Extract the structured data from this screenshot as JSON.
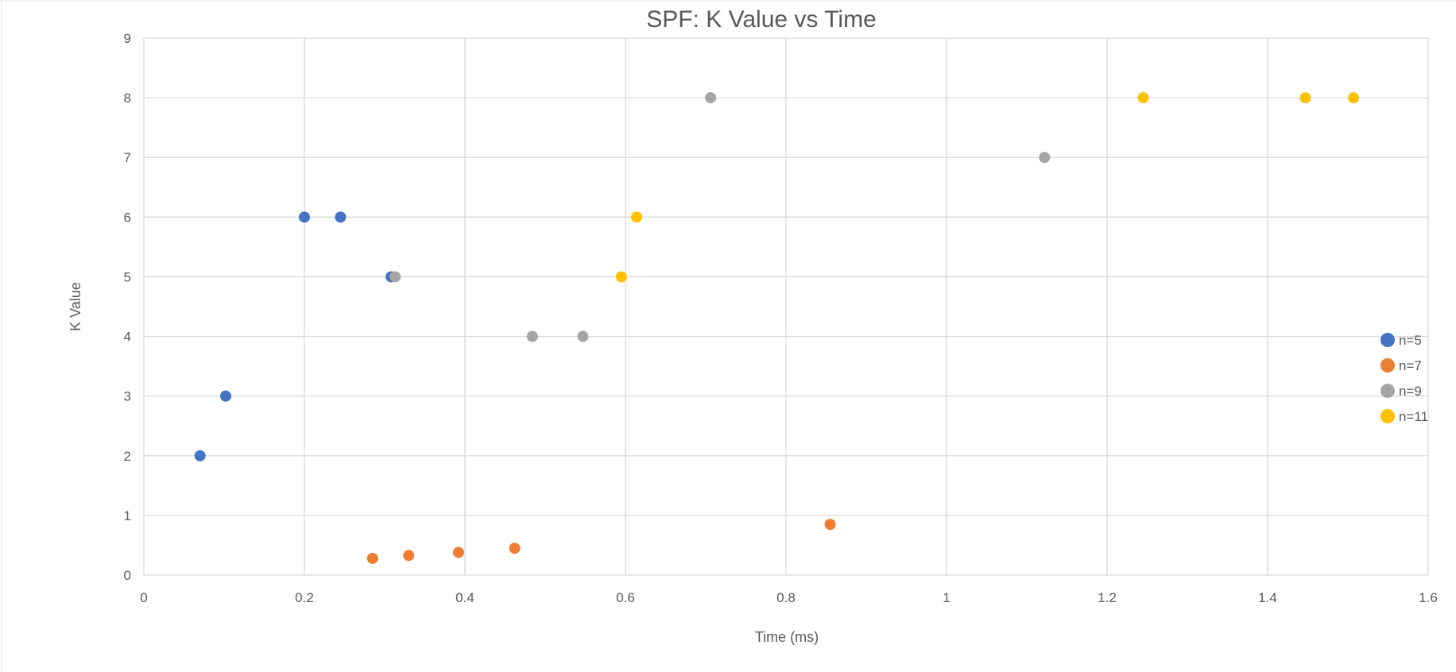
{
  "chart_data": {
    "type": "scatter",
    "title": "SPF: K Value vs Time",
    "xlabel": "Time (ms)",
    "ylabel": "K Value",
    "xlim": [
      0,
      1.6
    ],
    "ylim": [
      0,
      9
    ],
    "x_ticks": [
      "0",
      "0.2",
      "0.4",
      "0.6",
      "0.8",
      "1",
      "1.2",
      "1.4",
      "1.6"
    ],
    "y_ticks": [
      "0",
      "1",
      "2",
      "3",
      "4",
      "5",
      "6",
      "7",
      "8",
      "9"
    ],
    "grid": true,
    "legend_position": "right",
    "series": [
      {
        "name": "n=5",
        "color": "#4472C4",
        "points": [
          {
            "x": 0.07,
            "y": 2
          },
          {
            "x": 0.102,
            "y": 3
          },
          {
            "x": 0.2,
            "y": 6
          },
          {
            "x": 0.245,
            "y": 6
          },
          {
            "x": 0.308,
            "y": 5
          }
        ]
      },
      {
        "name": "n=7",
        "color": "#ED7D31",
        "points": [
          {
            "x": 0.285,
            "y": 0.28
          },
          {
            "x": 0.33,
            "y": 0.33
          },
          {
            "x": 0.392,
            "y": 0.38
          },
          {
            "x": 0.462,
            "y": 0.45
          },
          {
            "x": 0.855,
            "y": 0.85
          }
        ]
      },
      {
        "name": "n=9",
        "color": "#A5A5A5",
        "points": [
          {
            "x": 0.313,
            "y": 5
          },
          {
            "x": 0.484,
            "y": 4
          },
          {
            "x": 0.547,
            "y": 4
          },
          {
            "x": 0.706,
            "y": 8
          },
          {
            "x": 1.122,
            "y": 7
          }
        ]
      },
      {
        "name": "n=11",
        "color": "#FFC000",
        "points": [
          {
            "x": 0.595,
            "y": 5
          },
          {
            "x": 0.614,
            "y": 6
          },
          {
            "x": 1.245,
            "y": 8
          },
          {
            "x": 1.447,
            "y": 8
          },
          {
            "x": 1.507,
            "y": 8
          }
        ]
      }
    ]
  }
}
